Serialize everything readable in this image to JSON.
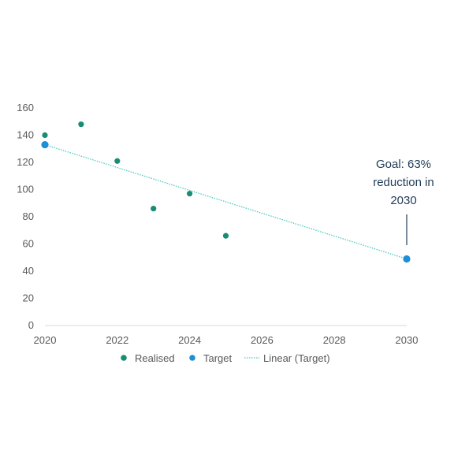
{
  "chart_data": {
    "type": "scatter",
    "xlim": [
      2020,
      2030
    ],
    "ylim": [
      0,
      160
    ],
    "x_ticks": [
      "2020",
      "2022",
      "2024",
      "2026",
      "2028",
      "2030"
    ],
    "y_ticks": [
      "0",
      "20",
      "40",
      "60",
      "80",
      "100",
      "120",
      "140",
      "160"
    ],
    "grid": false,
    "legend_position": "bottom",
    "series": [
      {
        "name": "Realised",
        "color": "#1a8c73",
        "points": [
          {
            "x": 2020,
            "y": 140
          },
          {
            "x": 2021,
            "y": 148
          },
          {
            "x": 2022,
            "y": 121
          },
          {
            "x": 2023,
            "y": 86
          },
          {
            "x": 2024,
            "y": 97
          },
          {
            "x": 2025,
            "y": 66
          }
        ]
      },
      {
        "name": "Target",
        "color": "#1e8fd6",
        "points": [
          {
            "x": 2020,
            "y": 133
          },
          {
            "x": 2030,
            "y": 49
          }
        ]
      }
    ],
    "trendline": {
      "name": "Linear (Target)",
      "color": "#4cc9c0",
      "style": "dotted",
      "from": {
        "x": 2020,
        "y": 133
      },
      "to": {
        "x": 2030,
        "y": 49
      }
    },
    "annotation": {
      "lines": [
        "Goal: 63%",
        "reduction in",
        "2030"
      ],
      "target_x": 2030,
      "target_y": 49
    }
  }
}
